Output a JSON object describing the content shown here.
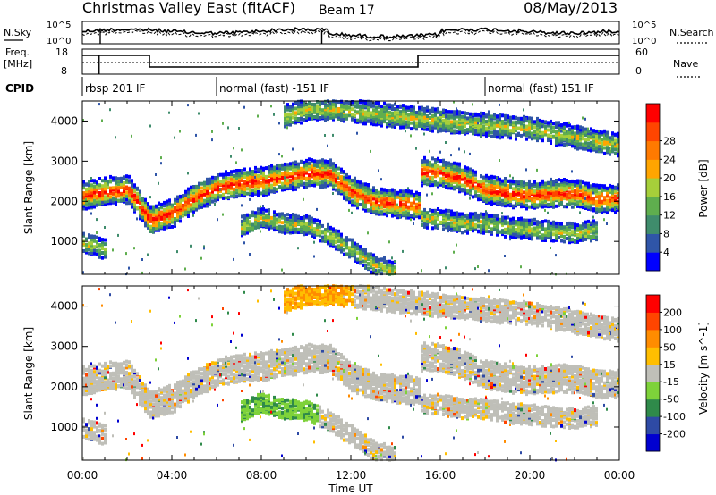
{
  "header": {
    "station": "Christmas Valley East (fitACF)",
    "beam": "Beam 17",
    "date": "08/May/2013"
  },
  "status_panels": {
    "nsky_label": "N.Sky",
    "nsearch_label": "N.Search",
    "noise_ticks": [
      "10^5",
      "10^0"
    ],
    "freq_label": "Freq.",
    "freq_unit": "[MHz]",
    "freq_ticks": [
      "18",
      "8"
    ],
    "nave_label": "Nave",
    "nave_ticks": [
      "60",
      "0"
    ],
    "cpid_label": "CPID",
    "cpid_segments": [
      {
        "label": "rbsp 201 IF",
        "start_h": 0,
        "end_h": 6
      },
      {
        "label": "normal (fast) -151 IF",
        "start_h": 6,
        "end_h": 18
      },
      {
        "label": "normal (fast) 151 IF",
        "start_h": 18,
        "end_h": 24
      }
    ]
  },
  "chart_data": [
    {
      "type": "heatmap",
      "title": "Power",
      "xlabel": "",
      "ylabel": "Slant Range [km]",
      "x_ticks": [
        "00:00",
        "04:00",
        "08:00",
        "12:00",
        "16:00",
        "20:00",
        "00:00"
      ],
      "xlim": [
        0,
        24
      ],
      "y_ticks": [
        1000,
        2000,
        3000,
        4000
      ],
      "ylim": [
        180,
        4500
      ],
      "colorbar": {
        "label": "Power [dB]",
        "ticks": [
          4,
          8,
          12,
          16,
          20,
          24,
          28
        ],
        "colors": [
          "#0000ff",
          "#2f55a8",
          "#3f8c6c",
          "#5fae4e",
          "#a6cf3a",
          "#ffa500",
          "#ff7a00",
          "#ff4500",
          "#ff0000"
        ]
      },
      "bands": [
        {
          "name": "main",
          "points": [
            [
              0,
              2150
            ],
            [
              1,
              2250
            ],
            [
              2,
              2300
            ],
            [
              3,
              1550
            ],
            [
              4,
              1700
            ],
            [
              5,
              2100
            ],
            [
              6,
              2350
            ],
            [
              7,
              2450
            ],
            [
              8,
              2500
            ],
            [
              9,
              2600
            ],
            [
              10,
              2700
            ],
            [
              11,
              2700
            ],
            [
              12,
              2250
            ],
            [
              13,
              2000
            ],
            [
              14,
              1950
            ],
            [
              15,
              1900
            ],
            [
              15.05,
              2750
            ],
            [
              16,
              2700
            ],
            [
              17,
              2550
            ],
            [
              18,
              2300
            ],
            [
              19,
              2200
            ],
            [
              20,
              2150
            ],
            [
              21,
              2200
            ],
            [
              22,
              2200
            ],
            [
              23,
              2050
            ],
            [
              24,
              2100
            ]
          ]
        },
        {
          "name": "lower",
          "points": [
            [
              7,
              1350
            ],
            [
              8,
              1600
            ],
            [
              9,
              1450
            ],
            [
              10,
              1400
            ],
            [
              11,
              1150
            ],
            [
              12,
              800
            ],
            [
              13,
              400
            ],
            [
              14,
              250
            ]
          ]
        },
        {
          "name": "low-mid",
          "points": [
            [
              15.1,
              1600
            ],
            [
              16,
              1550
            ],
            [
              17,
              1450
            ],
            [
              18,
              1450
            ],
            [
              19,
              1350
            ],
            [
              20,
              1300
            ],
            [
              21,
              1250
            ],
            [
              22,
              1200
            ],
            [
              23,
              1300
            ]
          ]
        },
        {
          "name": "early-low",
          "points": [
            [
              0,
              950
            ],
            [
              0.5,
              900
            ],
            [
              1,
              800
            ]
          ]
        },
        {
          "name": "upper",
          "points": [
            [
              9,
              4100
            ],
            [
              10,
              4300
            ],
            [
              11,
              4300
            ],
            [
              18,
              3900
            ],
            [
              20,
              3800
            ],
            [
              22,
              3600
            ],
            [
              24,
              3400
            ]
          ]
        }
      ]
    },
    {
      "type": "heatmap",
      "title": "Velocity",
      "xlabel": "Time UT",
      "ylabel": "Slant Range [km]",
      "x_ticks": [
        "00:00",
        "04:00",
        "08:00",
        "12:00",
        "16:00",
        "20:00",
        "00:00"
      ],
      "xlim": [
        0,
        24
      ],
      "y_ticks": [
        1000,
        2000,
        3000,
        4000
      ],
      "ylim": [
        180,
        4500
      ],
      "colorbar": {
        "label": "Velocity [m s^-1]",
        "ticks": [
          200,
          100,
          50,
          15,
          -15,
          -50,
          -100,
          -200
        ],
        "colors": [
          "#0000d0",
          "#2e4aa5",
          "#2f8a4a",
          "#7ed23a",
          "#bfbfb8",
          "#ffbe00",
          "#ff8c00",
          "#ff4500",
          "#ff0000"
        ]
      }
    }
  ]
}
